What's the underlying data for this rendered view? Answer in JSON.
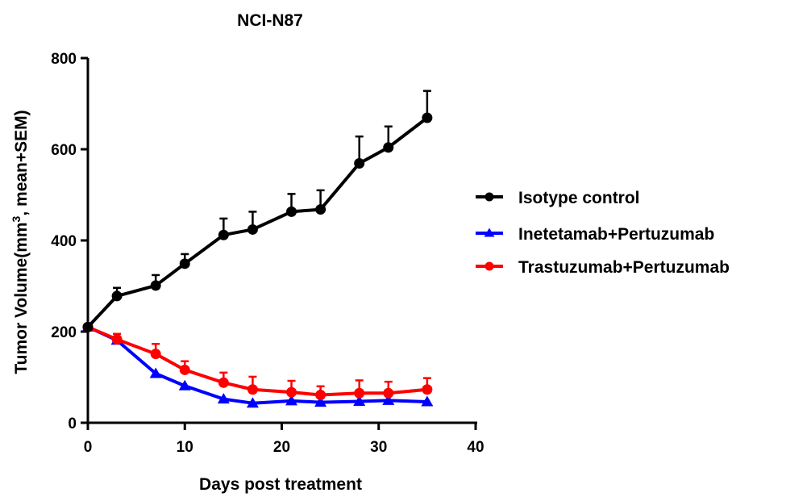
{
  "chart_data": {
    "type": "line",
    "title": "NCI-N87",
    "xlabel": "Days post treatment",
    "ylabel_main": "Tumor Volume(mm",
    "ylabel_sup": "3",
    "ylabel_tail": ", mean+SEM)",
    "xlim": [
      0,
      40
    ],
    "ylim": [
      0,
      800
    ],
    "xticks": [
      0,
      10,
      20,
      30,
      40
    ],
    "yticks": [
      0,
      200,
      400,
      600,
      800
    ],
    "grid": false,
    "legend_placement": "right",
    "x": [
      0,
      3,
      7,
      10,
      14,
      17,
      21,
      24,
      28,
      31,
      35
    ],
    "series": [
      {
        "name": "Isotype control",
        "color": "#000000",
        "marker": "circle",
        "values": [
          210,
          278,
          301,
          349,
          412,
          424,
          463,
          468,
          569,
          604,
          669
        ],
        "sem_upper": [
          210,
          296,
          324,
          370,
          448,
          463,
          502,
          510,
          628,
          650,
          728
        ]
      },
      {
        "name": "Inetetamab+Pertuzumab",
        "color": "#0000ff",
        "marker": "triangle",
        "values": [
          210,
          181,
          108,
          81,
          52,
          43,
          48,
          45,
          47,
          49,
          46
        ],
        "sem_upper": [
          210,
          181,
          108,
          81,
          52,
          43,
          48,
          45,
          47,
          49,
          46
        ]
      },
      {
        "name": "Trastuzumab+Pertuzumab",
        "color": "#ff0000",
        "marker": "circle",
        "values": [
          210,
          183,
          151,
          116,
          88,
          73,
          67,
          61,
          65,
          65,
          73
        ],
        "sem_upper": [
          210,
          195,
          173,
          135,
          110,
          101,
          92,
          80,
          93,
          90,
          98
        ]
      }
    ]
  }
}
